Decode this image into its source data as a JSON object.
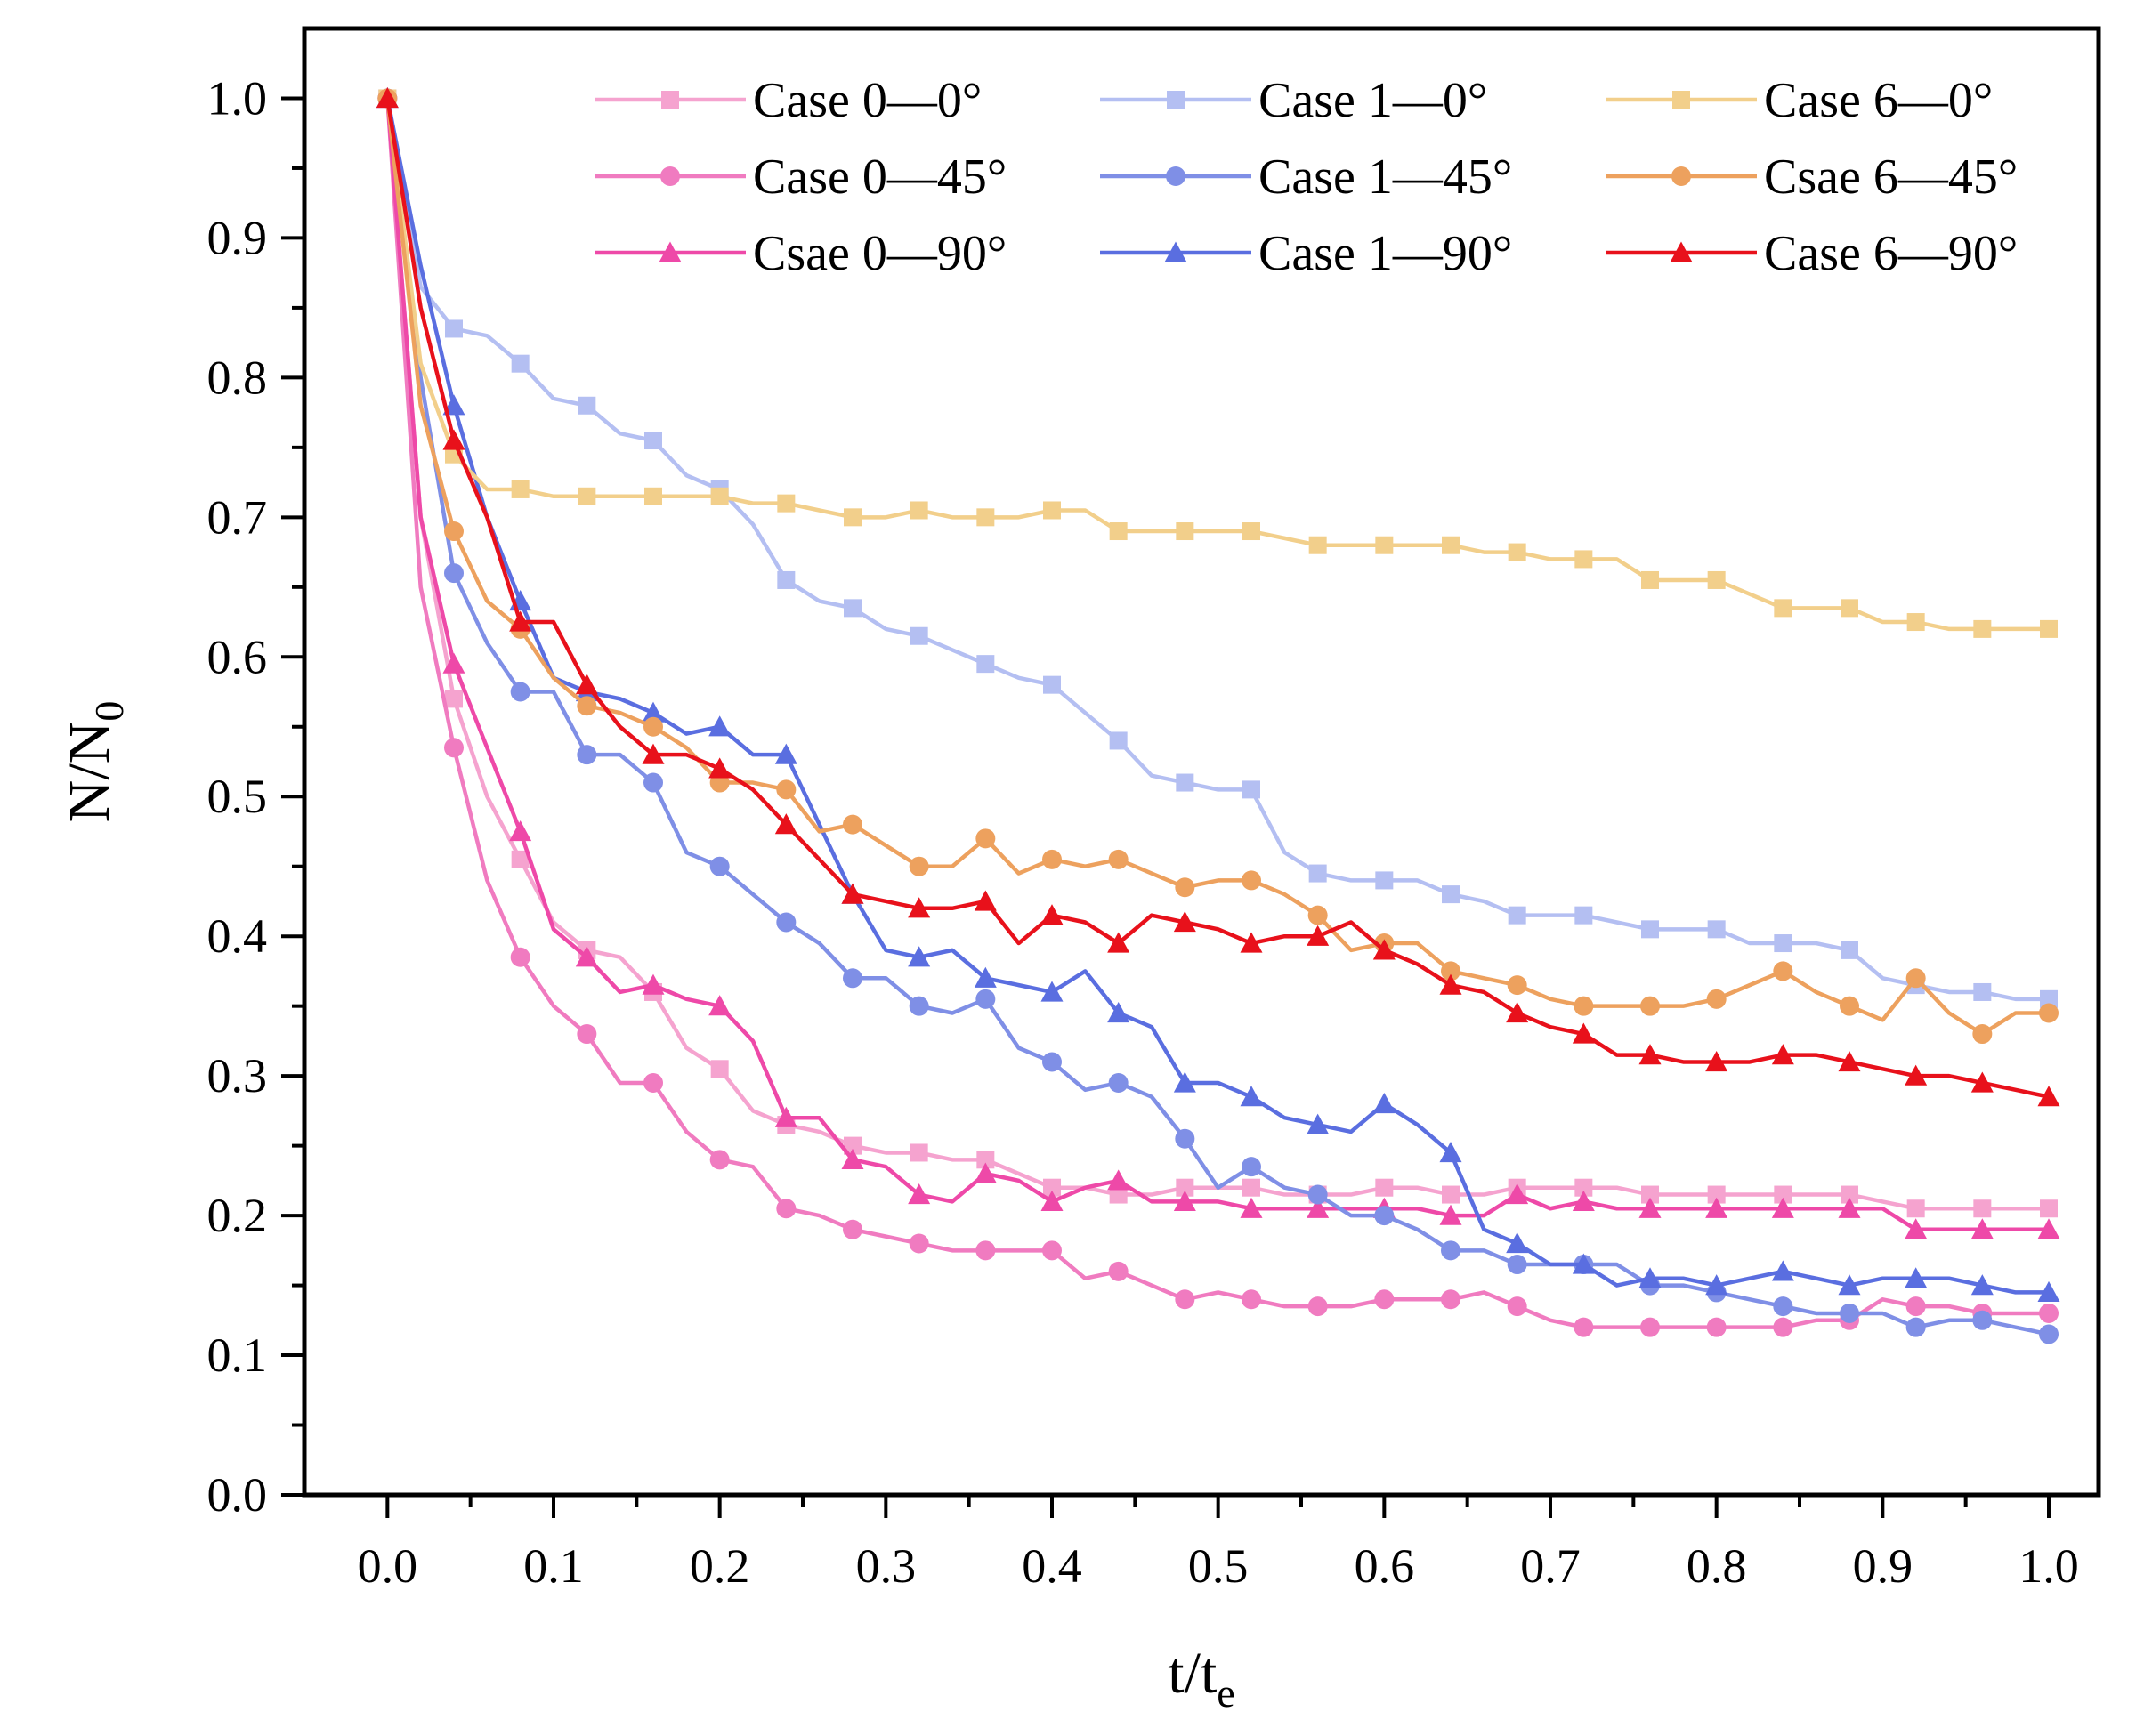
{
  "chart_data": {
    "type": "line",
    "title": "",
    "xlabel": {
      "main": "t/t",
      "sub": "e"
    },
    "ylabel": {
      "main": "N/N",
      "sub": "0"
    },
    "xlim": [
      -0.05,
      1.03
    ],
    "ylim": [
      0.0,
      1.05
    ],
    "xticks": [
      0.0,
      0.1,
      0.2,
      0.3,
      0.4,
      0.5,
      0.6,
      0.7,
      0.8,
      0.9,
      1.0
    ],
    "xtick_labels": [
      "0.0",
      "0.1",
      "0.2",
      "0.3",
      "0.4",
      "0.5",
      "0.6",
      "0.7",
      "0.8",
      "0.9",
      "1.0"
    ],
    "yticks": [
      0.0,
      0.1,
      0.2,
      0.3,
      0.4,
      0.5,
      0.6,
      0.7,
      0.8,
      0.9,
      1.0
    ],
    "ytick_labels": [
      "0.0",
      "0.1",
      "0.2",
      "0.3",
      "0.4",
      "0.5",
      "0.6",
      "0.7",
      "0.8",
      "0.9",
      "1.0"
    ],
    "grid": false,
    "legend": {
      "position": "top-right",
      "columns": 3
    },
    "series": [
      {
        "name": "Case 0—0°",
        "color": "#F5A3CF",
        "marker": "square",
        "x": [
          0.0,
          0.02,
          0.04,
          0.06,
          0.08,
          0.1,
          0.12,
          0.14,
          0.16,
          0.18,
          0.2,
          0.22,
          0.24,
          0.26,
          0.28,
          0.3,
          0.32,
          0.34,
          0.36,
          0.38,
          0.4,
          0.42,
          0.44,
          0.46,
          0.48,
          0.5,
          0.52,
          0.54,
          0.56,
          0.58,
          0.6,
          0.62,
          0.64,
          0.66,
          0.68,
          0.7,
          0.72,
          0.74,
          0.76,
          0.78,
          0.8,
          0.82,
          0.84,
          0.86,
          0.88,
          0.9,
          0.92,
          0.94,
          0.96,
          0.98,
          1.0
        ],
        "y": [
          1.0,
          0.7,
          0.57,
          0.5,
          0.455,
          0.41,
          0.39,
          0.385,
          0.36,
          0.32,
          0.305,
          0.275,
          0.265,
          0.26,
          0.25,
          0.245,
          0.245,
          0.24,
          0.24,
          0.23,
          0.22,
          0.22,
          0.215,
          0.215,
          0.22,
          0.22,
          0.22,
          0.215,
          0.215,
          0.215,
          0.22,
          0.22,
          0.215,
          0.215,
          0.22,
          0.22,
          0.22,
          0.22,
          0.215,
          0.215,
          0.215,
          0.215,
          0.215,
          0.215,
          0.215,
          0.21,
          0.205,
          0.205,
          0.205,
          0.205,
          0.205
        ]
      },
      {
        "name": "Case 0—45°",
        "color": "#F07BC0",
        "marker": "circle",
        "x": [
          0.0,
          0.02,
          0.04,
          0.06,
          0.08,
          0.1,
          0.12,
          0.14,
          0.16,
          0.18,
          0.2,
          0.22,
          0.24,
          0.26,
          0.28,
          0.3,
          0.32,
          0.34,
          0.36,
          0.38,
          0.4,
          0.42,
          0.44,
          0.46,
          0.48,
          0.5,
          0.52,
          0.54,
          0.56,
          0.58,
          0.6,
          0.62,
          0.64,
          0.66,
          0.68,
          0.7,
          0.72,
          0.74,
          0.76,
          0.78,
          0.8,
          0.82,
          0.84,
          0.86,
          0.88,
          0.9,
          0.92,
          0.94,
          0.96,
          0.98,
          1.0
        ],
        "y": [
          1.0,
          0.65,
          0.535,
          0.44,
          0.385,
          0.35,
          0.33,
          0.295,
          0.295,
          0.26,
          0.24,
          0.235,
          0.205,
          0.2,
          0.19,
          0.185,
          0.18,
          0.175,
          0.175,
          0.175,
          0.175,
          0.155,
          0.16,
          0.15,
          0.14,
          0.145,
          0.14,
          0.135,
          0.135,
          0.135,
          0.14,
          0.14,
          0.14,
          0.145,
          0.135,
          0.125,
          0.12,
          0.12,
          0.12,
          0.12,
          0.12,
          0.12,
          0.12,
          0.125,
          0.125,
          0.14,
          0.135,
          0.135,
          0.13,
          0.13,
          0.13
        ]
      },
      {
        "name": "Csae 0—90°",
        "color": "#EE49A8",
        "marker": "triangle",
        "x": [
          0.0,
          0.02,
          0.04,
          0.06,
          0.08,
          0.1,
          0.12,
          0.14,
          0.16,
          0.18,
          0.2,
          0.22,
          0.24,
          0.26,
          0.28,
          0.3,
          0.32,
          0.34,
          0.36,
          0.38,
          0.4,
          0.42,
          0.44,
          0.46,
          0.48,
          0.5,
          0.52,
          0.54,
          0.56,
          0.58,
          0.6,
          0.62,
          0.64,
          0.66,
          0.68,
          0.7,
          0.72,
          0.74,
          0.76,
          0.78,
          0.8,
          0.82,
          0.84,
          0.86,
          0.88,
          0.9,
          0.92,
          0.94,
          0.96,
          0.98,
          1.0
        ],
        "y": [
          1.0,
          0.7,
          0.595,
          0.535,
          0.475,
          0.405,
          0.385,
          0.36,
          0.365,
          0.355,
          0.35,
          0.325,
          0.27,
          0.27,
          0.24,
          0.235,
          0.215,
          0.21,
          0.23,
          0.225,
          0.21,
          0.22,
          0.225,
          0.21,
          0.21,
          0.21,
          0.205,
          0.205,
          0.205,
          0.205,
          0.205,
          0.205,
          0.2,
          0.2,
          0.215,
          0.205,
          0.21,
          0.205,
          0.205,
          0.205,
          0.205,
          0.205,
          0.205,
          0.205,
          0.205,
          0.205,
          0.19,
          0.19,
          0.19,
          0.19,
          0.19
        ]
      },
      {
        "name": "Case 1—0°",
        "color": "#B4BFF2",
        "marker": "square",
        "x": [
          0.0,
          0.02,
          0.04,
          0.06,
          0.08,
          0.1,
          0.12,
          0.14,
          0.16,
          0.18,
          0.2,
          0.22,
          0.24,
          0.26,
          0.28,
          0.3,
          0.32,
          0.34,
          0.36,
          0.38,
          0.4,
          0.42,
          0.44,
          0.46,
          0.48,
          0.5,
          0.52,
          0.54,
          0.56,
          0.58,
          0.6,
          0.62,
          0.64,
          0.66,
          0.68,
          0.7,
          0.72,
          0.74,
          0.76,
          0.78,
          0.8,
          0.82,
          0.84,
          0.86,
          0.88,
          0.9,
          0.92,
          0.94,
          0.96,
          0.98,
          1.0
        ],
        "y": [
          1.0,
          0.865,
          0.835,
          0.83,
          0.81,
          0.785,
          0.78,
          0.76,
          0.755,
          0.73,
          0.72,
          0.695,
          0.655,
          0.64,
          0.635,
          0.62,
          0.615,
          0.605,
          0.595,
          0.585,
          0.58,
          0.56,
          0.54,
          0.515,
          0.51,
          0.505,
          0.505,
          0.46,
          0.445,
          0.44,
          0.44,
          0.44,
          0.43,
          0.425,
          0.415,
          0.415,
          0.415,
          0.41,
          0.405,
          0.405,
          0.405,
          0.395,
          0.395,
          0.395,
          0.39,
          0.37,
          0.365,
          0.36,
          0.36,
          0.355,
          0.355
        ]
      },
      {
        "name": "Case 1—45°",
        "color": "#7F8FE6",
        "marker": "circle",
        "x": [
          0.0,
          0.02,
          0.04,
          0.06,
          0.08,
          0.1,
          0.12,
          0.14,
          0.16,
          0.18,
          0.2,
          0.22,
          0.24,
          0.26,
          0.28,
          0.3,
          0.32,
          0.34,
          0.36,
          0.38,
          0.4,
          0.42,
          0.44,
          0.46,
          0.48,
          0.5,
          0.52,
          0.54,
          0.56,
          0.58,
          0.6,
          0.62,
          0.64,
          0.66,
          0.68,
          0.7,
          0.72,
          0.74,
          0.76,
          0.78,
          0.8,
          0.82,
          0.84,
          0.86,
          0.88,
          0.9,
          0.92,
          0.94,
          0.96,
          0.98,
          1.0
        ],
        "y": [
          1.0,
          0.8,
          0.66,
          0.61,
          0.575,
          0.575,
          0.53,
          0.53,
          0.51,
          0.46,
          0.45,
          0.43,
          0.41,
          0.395,
          0.37,
          0.37,
          0.35,
          0.345,
          0.355,
          0.32,
          0.31,
          0.29,
          0.295,
          0.285,
          0.255,
          0.22,
          0.235,
          0.22,
          0.215,
          0.2,
          0.2,
          0.19,
          0.175,
          0.175,
          0.165,
          0.165,
          0.165,
          0.165,
          0.15,
          0.15,
          0.145,
          0.14,
          0.135,
          0.13,
          0.13,
          0.13,
          0.12,
          0.125,
          0.125,
          0.12,
          0.115
        ]
      },
      {
        "name": "Case 1—90°",
        "color": "#5A6EE0",
        "marker": "triangle",
        "x": [
          0.0,
          0.02,
          0.04,
          0.06,
          0.08,
          0.1,
          0.12,
          0.14,
          0.16,
          0.18,
          0.2,
          0.22,
          0.24,
          0.26,
          0.28,
          0.3,
          0.32,
          0.34,
          0.36,
          0.38,
          0.4,
          0.42,
          0.44,
          0.46,
          0.48,
          0.5,
          0.52,
          0.54,
          0.56,
          0.58,
          0.6,
          0.62,
          0.64,
          0.66,
          0.68,
          0.7,
          0.72,
          0.74,
          0.76,
          0.78,
          0.8,
          0.82,
          0.84,
          0.86,
          0.88,
          0.9,
          0.92,
          0.94,
          0.96,
          0.98,
          1.0
        ],
        "y": [
          1.0,
          0.88,
          0.78,
          0.7,
          0.64,
          0.585,
          0.575,
          0.57,
          0.56,
          0.545,
          0.55,
          0.53,
          0.53,
          0.48,
          0.43,
          0.39,
          0.385,
          0.39,
          0.37,
          0.365,
          0.36,
          0.375,
          0.345,
          0.335,
          0.295,
          0.295,
          0.285,
          0.27,
          0.265,
          0.26,
          0.28,
          0.265,
          0.245,
          0.19,
          0.18,
          0.165,
          0.165,
          0.15,
          0.155,
          0.155,
          0.15,
          0.155,
          0.16,
          0.155,
          0.15,
          0.155,
          0.155,
          0.155,
          0.15,
          0.145,
          0.145
        ]
      },
      {
        "name": "Case 6—0°",
        "color": "#F2CF8B",
        "marker": "square",
        "x": [
          0.0,
          0.02,
          0.04,
          0.06,
          0.08,
          0.1,
          0.12,
          0.14,
          0.16,
          0.18,
          0.2,
          0.22,
          0.24,
          0.26,
          0.28,
          0.3,
          0.32,
          0.34,
          0.36,
          0.38,
          0.4,
          0.42,
          0.44,
          0.46,
          0.48,
          0.5,
          0.52,
          0.54,
          0.56,
          0.58,
          0.6,
          0.62,
          0.64,
          0.66,
          0.68,
          0.7,
          0.72,
          0.74,
          0.76,
          0.78,
          0.8,
          0.82,
          0.84,
          0.86,
          0.88,
          0.9,
          0.92,
          0.94,
          0.96,
          0.98,
          1.0
        ],
        "y": [
          1.0,
          0.81,
          0.745,
          0.72,
          0.72,
          0.715,
          0.715,
          0.715,
          0.715,
          0.715,
          0.715,
          0.71,
          0.71,
          0.705,
          0.7,
          0.7,
          0.705,
          0.7,
          0.7,
          0.7,
          0.705,
          0.705,
          0.69,
          0.69,
          0.69,
          0.69,
          0.69,
          0.685,
          0.68,
          0.68,
          0.68,
          0.68,
          0.68,
          0.675,
          0.675,
          0.67,
          0.67,
          0.67,
          0.655,
          0.655,
          0.655,
          0.645,
          0.635,
          0.635,
          0.635,
          0.625,
          0.625,
          0.62,
          0.62,
          0.62,
          0.62
        ]
      },
      {
        "name": "Csae 6—45°",
        "color": "#EDA15E",
        "marker": "circle",
        "x": [
          0.0,
          0.02,
          0.04,
          0.06,
          0.08,
          0.1,
          0.12,
          0.14,
          0.16,
          0.18,
          0.2,
          0.22,
          0.24,
          0.26,
          0.28,
          0.3,
          0.32,
          0.34,
          0.36,
          0.38,
          0.4,
          0.42,
          0.44,
          0.46,
          0.48,
          0.5,
          0.52,
          0.54,
          0.56,
          0.58,
          0.6,
          0.62,
          0.64,
          0.66,
          0.68,
          0.7,
          0.72,
          0.74,
          0.76,
          0.78,
          0.8,
          0.82,
          0.84,
          0.86,
          0.88,
          0.9,
          0.92,
          0.94,
          0.96,
          0.98,
          1.0
        ],
        "y": [
          1.0,
          0.78,
          0.69,
          0.64,
          0.62,
          0.585,
          0.565,
          0.56,
          0.55,
          0.535,
          0.51,
          0.51,
          0.505,
          0.475,
          0.48,
          0.465,
          0.45,
          0.45,
          0.47,
          0.445,
          0.455,
          0.45,
          0.455,
          0.445,
          0.435,
          0.44,
          0.44,
          0.43,
          0.415,
          0.39,
          0.395,
          0.395,
          0.375,
          0.37,
          0.365,
          0.355,
          0.35,
          0.35,
          0.35,
          0.35,
          0.355,
          0.365,
          0.375,
          0.36,
          0.35,
          0.34,
          0.37,
          0.345,
          0.33,
          0.345,
          0.345
        ]
      },
      {
        "name": "Case 6—90°",
        "color": "#E8111B",
        "marker": "triangle",
        "x": [
          0.0,
          0.02,
          0.04,
          0.06,
          0.08,
          0.1,
          0.12,
          0.14,
          0.16,
          0.18,
          0.2,
          0.22,
          0.24,
          0.26,
          0.28,
          0.3,
          0.32,
          0.34,
          0.36,
          0.38,
          0.4,
          0.42,
          0.44,
          0.46,
          0.48,
          0.5,
          0.52,
          0.54,
          0.56,
          0.58,
          0.6,
          0.62,
          0.64,
          0.66,
          0.68,
          0.7,
          0.72,
          0.74,
          0.76,
          0.78,
          0.8,
          0.82,
          0.84,
          0.86,
          0.88,
          0.9,
          0.92,
          0.94,
          0.96,
          0.98,
          1.0
        ],
        "y": [
          1.0,
          0.85,
          0.755,
          0.7,
          0.625,
          0.625,
          0.58,
          0.55,
          0.53,
          0.53,
          0.52,
          0.505,
          0.48,
          0.455,
          0.43,
          0.425,
          0.42,
          0.42,
          0.425,
          0.395,
          0.415,
          0.41,
          0.395,
          0.415,
          0.41,
          0.405,
          0.395,
          0.4,
          0.4,
          0.41,
          0.39,
          0.38,
          0.365,
          0.36,
          0.345,
          0.335,
          0.33,
          0.315,
          0.315,
          0.31,
          0.31,
          0.31,
          0.315,
          0.315,
          0.31,
          0.305,
          0.3,
          0.3,
          0.295,
          0.29,
          0.285
        ]
      }
    ]
  }
}
